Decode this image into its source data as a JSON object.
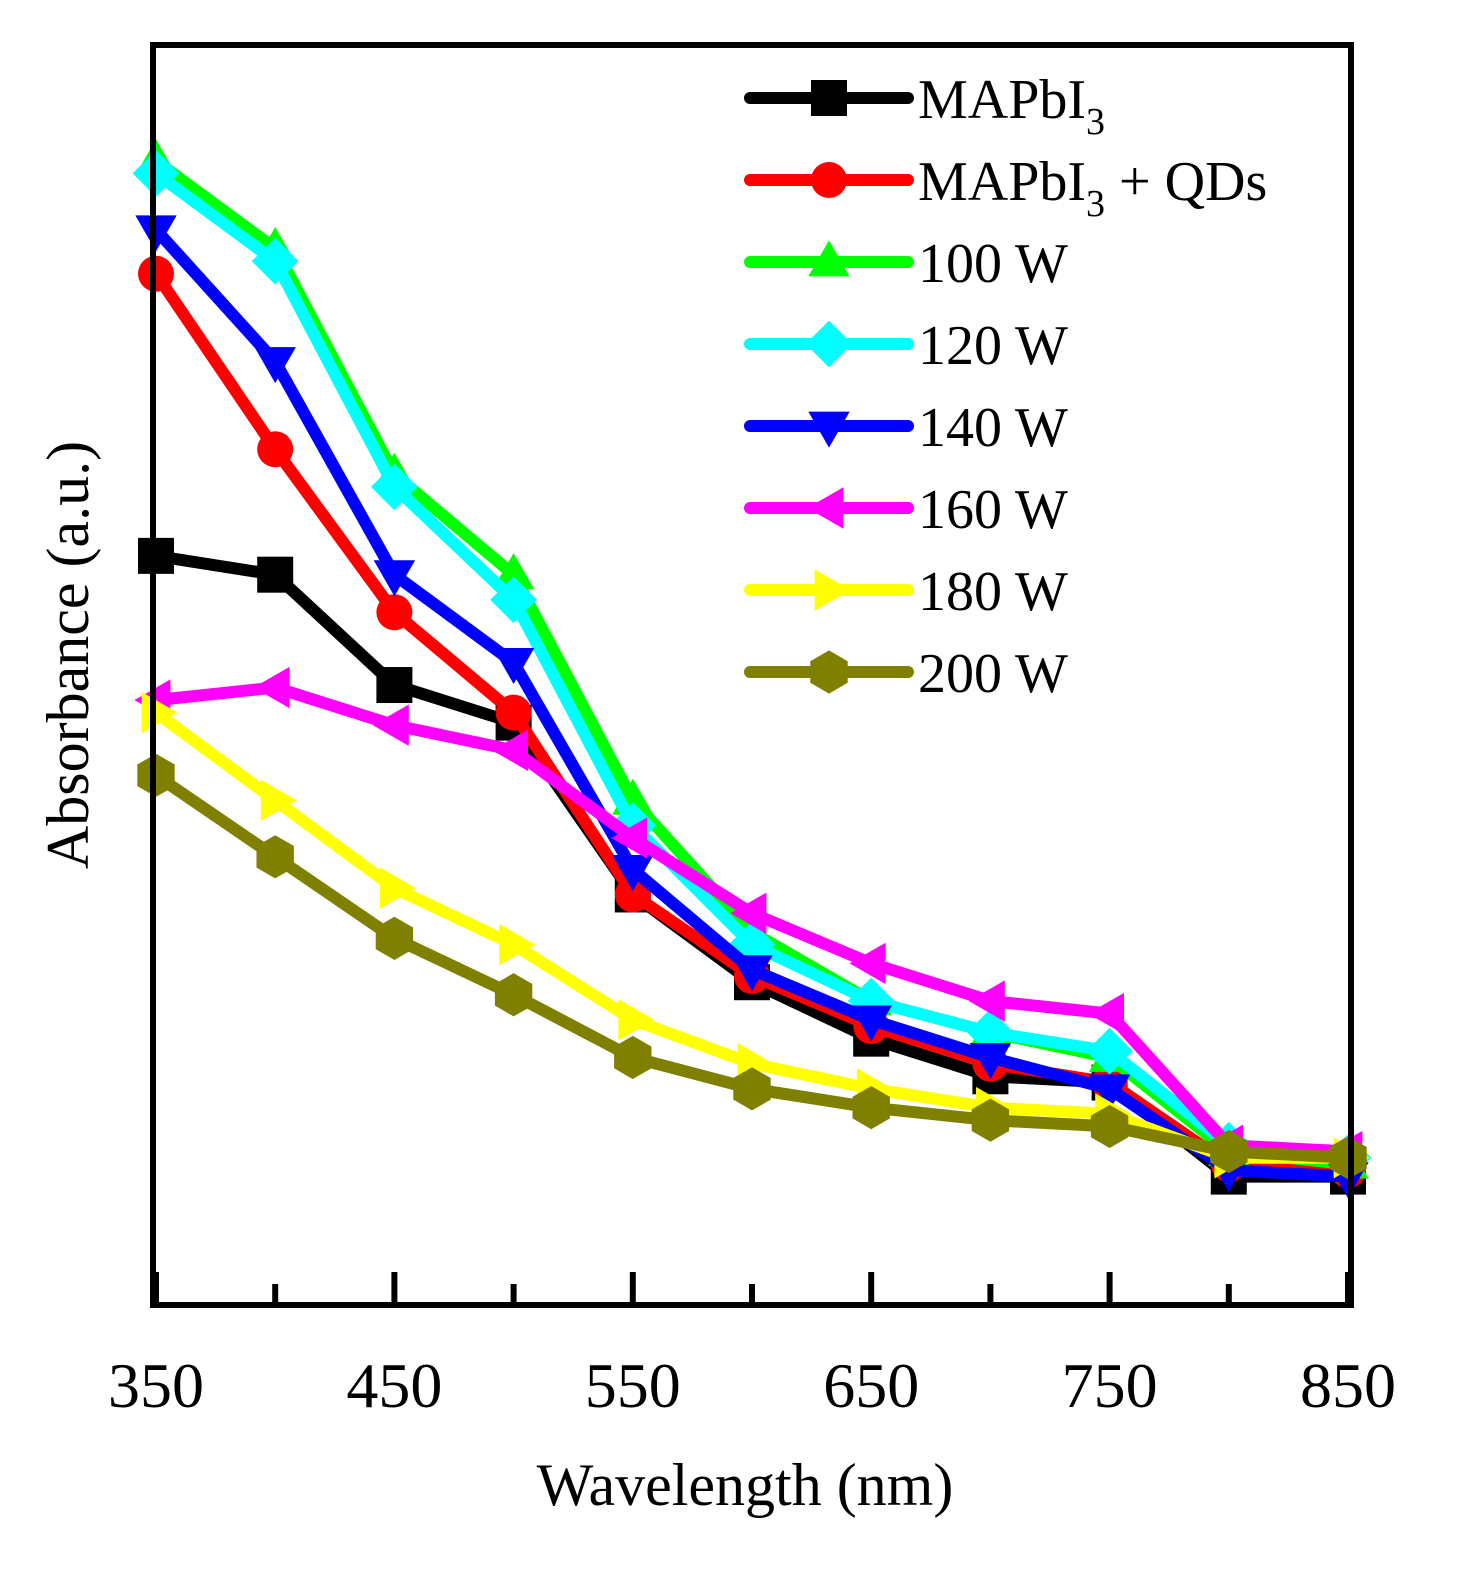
{
  "chart_data": {
    "type": "line",
    "title": "",
    "xlabel": "Wavelength (nm)",
    "ylabel": "Absorbance (a.u.)",
    "xlim": [
      350,
      850
    ],
    "ylim": [
      0,
      1.0
    ],
    "xticks": [
      350,
      450,
      550,
      650,
      750,
      850
    ],
    "xtick_labels": [
      "350",
      "450",
      "550",
      "650",
      "750",
      "850"
    ],
    "minor_xticks": [
      400,
      500,
      600,
      700,
      800
    ],
    "y_tick_labels_shown": false,
    "grid": false,
    "legend_position": "top-right",
    "x": [
      350,
      400,
      450,
      500,
      550,
      600,
      650,
      700,
      750,
      800,
      850
    ],
    "series": [
      {
        "name": "MAPbI",
        "sub": "3",
        "suffix": "",
        "color": "#000000",
        "marker": "square",
        "values": [
          0.595,
          0.58,
          0.492,
          0.462,
          0.325,
          0.255,
          0.21,
          0.18,
          0.175,
          0.1,
          0.1
        ]
      },
      {
        "name": "MAPbI",
        "sub": "3",
        "suffix": " + QDs",
        "color": "#ff0000",
        "marker": "circle",
        "values": [
          0.82,
          0.68,
          0.55,
          0.47,
          0.325,
          0.26,
          0.22,
          0.19,
          0.175,
          0.11,
          0.105
        ]
      },
      {
        "name": "100 W",
        "sub": "",
        "suffix": "",
        "color": "#00ff00",
        "marker": "triangle-up",
        "values": [
          0.91,
          0.84,
          0.66,
          0.58,
          0.4,
          0.295,
          0.24,
          0.215,
          0.195,
          0.12,
          0.11
        ]
      },
      {
        "name": "120 W",
        "sub": "",
        "suffix": "",
        "color": "#00ffff",
        "marker": "diamond",
        "values": [
          0.9,
          0.83,
          0.65,
          0.56,
          0.38,
          0.285,
          0.24,
          0.215,
          0.2,
          0.125,
          0.115
        ]
      },
      {
        "name": "140 W",
        "sub": "",
        "suffix": "",
        "color": "#0000ff",
        "marker": "triangle-down",
        "values": [
          0.855,
          0.75,
          0.58,
          0.51,
          0.345,
          0.265,
          0.225,
          0.195,
          0.17,
          0.105,
          0.1
        ]
      },
      {
        "name": "160 W",
        "sub": "",
        "suffix": "",
        "color": "#ff00ff",
        "marker": "triangle-left",
        "values": [
          0.48,
          0.49,
          0.46,
          0.44,
          0.37,
          0.31,
          0.27,
          0.24,
          0.23,
          0.125,
          0.12
        ]
      },
      {
        "name": "180 W",
        "sub": "",
        "suffix": "",
        "color": "#ffff00",
        "marker": "triangle-right",
        "values": [
          0.47,
          0.4,
          0.33,
          0.285,
          0.225,
          0.19,
          0.17,
          0.155,
          0.15,
          0.115,
          0.115
        ]
      },
      {
        "name": "200 W",
        "sub": "",
        "suffix": "",
        "color": "#808000",
        "marker": "hexagon",
        "values": [
          0.42,
          0.355,
          0.29,
          0.245,
          0.195,
          0.17,
          0.155,
          0.145,
          0.14,
          0.12,
          0.115
        ]
      }
    ]
  }
}
